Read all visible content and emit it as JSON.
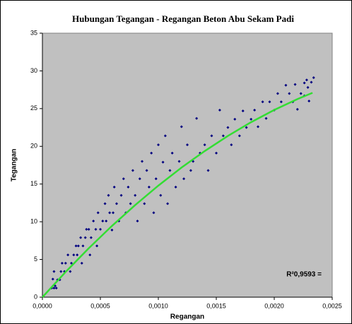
{
  "chart_data": {
    "type": "scatter",
    "title": "Hubungan Tegangan - Regangan Beton Abu Sekam Padi",
    "xlabel": "Regangan",
    "ylabel": "Tegangan",
    "annotation": "R²0,9593 =",
    "xlim": [
      0,
      0.0025
    ],
    "xticks": [
      {
        "value": 0,
        "label": "0,0000"
      },
      {
        "value": 0.0005,
        "label": "0,0005"
      },
      {
        "value": 0.001,
        "label": "0,0010"
      },
      {
        "value": 0.0015,
        "label": "0,0015"
      },
      {
        "value": 0.002,
        "label": "0,0020"
      },
      {
        "value": 0.0025,
        "label": "0,0025"
      }
    ],
    "ylim": [
      0,
      35
    ],
    "yticks": [
      0,
      5,
      10,
      15,
      20,
      25,
      30,
      35
    ],
    "color": "#000080",
    "x": [
      8e-05,
      0.0001,
      0.00011,
      0.00012,
      9e-05,
      0.0001,
      0.00013,
      0.00015,
      0.00016,
      0.00017,
      0.00019,
      0.0002,
      0.00022,
      0.00024,
      0.00025,
      0.00027,
      0.00029,
      0.0003,
      0.00031,
      0.00033,
      0.00034,
      0.00035,
      0.00037,
      0.00038,
      0.0004,
      0.00041,
      0.00042,
      0.00044,
      0.00046,
      0.00047,
      0.00048,
      0.0005,
      0.00052,
      0.00054,
      0.00055,
      0.00057,
      0.00058,
      0.0006,
      0.00061,
      0.00062,
      0.00064,
      0.00066,
      0.00068,
      0.0007,
      0.00072,
      0.00074,
      0.00076,
      0.00078,
      0.0008,
      0.00082,
      0.00084,
      0.00086,
      0.00088,
      0.0009,
      0.00092,
      0.00094,
      0.00096,
      0.00098,
      0.001,
      0.00102,
      0.00104,
      0.00106,
      0.00108,
      0.0011,
      0.00112,
      0.00115,
      0.00118,
      0.0012,
      0.00122,
      0.00125,
      0.00128,
      0.0013,
      0.00133,
      0.00136,
      0.0014,
      0.00143,
      0.00146,
      0.0015,
      0.00153,
      0.00156,
      0.0016,
      0.00163,
      0.00166,
      0.0017,
      0.00173,
      0.00176,
      0.0018,
      0.00183,
      0.00186,
      0.0019,
      0.00193,
      0.00196,
      0.002,
      0.00203,
      0.00206,
      0.0021,
      0.00213,
      0.00216,
      0.00218,
      0.0022,
      0.00223,
      0.00226,
      0.00228,
      0.0023,
      0.00232,
      0.00234,
      0.00229,
      0.00226
    ],
    "values": [
      1.2,
      1.2,
      1.5,
      1.2,
      2.4,
      3.4,
      2.3,
      2.3,
      3.4,
      4.5,
      3.4,
      4.5,
      5.6,
      3.4,
      4.5,
      5.6,
      6.8,
      5.6,
      6.8,
      7.9,
      4.5,
      6.8,
      7.9,
      9.0,
      9.0,
      5.6,
      7.9,
      10.1,
      9.0,
      6.8,
      11.2,
      9.0,
      10.1,
      12.4,
      10.1,
      13.5,
      11.2,
      8.9,
      11.2,
      14.6,
      12.4,
      10.1,
      13.5,
      15.7,
      11.2,
      14.6,
      12.4,
      16.8,
      13.5,
      10.1,
      15.7,
      18.0,
      12.4,
      16.8,
      14.6,
      19.1,
      11.2,
      15.7,
      20.2,
      13.5,
      17.9,
      21.4,
      12.4,
      16.8,
      19.1,
      14.6,
      18.0,
      22.6,
      15.7,
      20.2,
      16.8,
      18.0,
      23.7,
      19.1,
      20.2,
      16.8,
      21.4,
      19.1,
      24.8,
      21.4,
      22.5,
      20.2,
      23.6,
      21.4,
      24.7,
      22.5,
      23.6,
      24.8,
      22.6,
      25.9,
      23.7,
      25.9,
      24.8,
      27.0,
      25.9,
      28.1,
      27.0,
      25.9,
      28.2,
      24.9,
      27.0,
      26.7,
      28.8,
      26.0,
      28.5,
      29.1,
      27.8,
      28.4
    ],
    "trendline": {
      "color": "#33dd33",
      "x": [
        0,
        0.0002,
        0.0004,
        0.0006,
        0.0008,
        0.001,
        0.0012,
        0.0014,
        0.0016,
        0.0018,
        0.002,
        0.0022,
        0.00233
      ],
      "values": [
        0,
        3.34,
        6.49,
        9.45,
        12.21,
        14.79,
        17.18,
        19.37,
        21.38,
        23.2,
        24.82,
        26.26,
        27.09
      ]
    }
  }
}
